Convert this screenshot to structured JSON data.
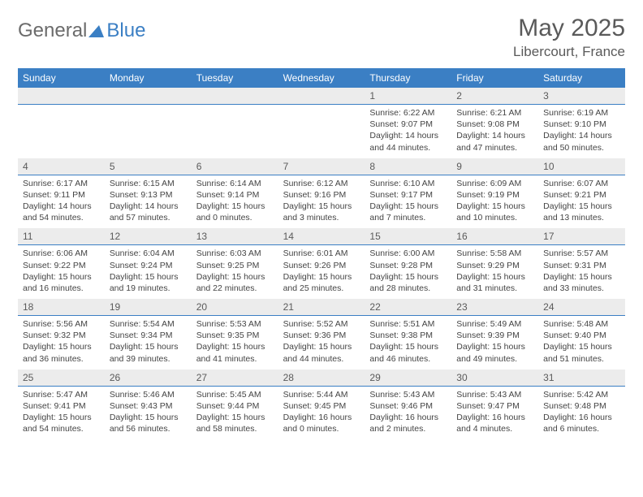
{
  "logo": {
    "text1": "General",
    "text2": "Blue"
  },
  "title": "May 2025",
  "subtitle": "Libercourt, France",
  "colors": {
    "header_bg": "#3b7fc4",
    "header_text": "#ffffff",
    "daynum_bg": "#ececec",
    "border": "#3b7fc4",
    "text": "#444444",
    "title_color": "#5a5a5a"
  },
  "day_names": [
    "Sunday",
    "Monday",
    "Tuesday",
    "Wednesday",
    "Thursday",
    "Friday",
    "Saturday"
  ],
  "weeks": [
    [
      {
        "n": "",
        "sunrise": "",
        "sunset": "",
        "daylight1": "",
        "daylight2": ""
      },
      {
        "n": "",
        "sunrise": "",
        "sunset": "",
        "daylight1": "",
        "daylight2": ""
      },
      {
        "n": "",
        "sunrise": "",
        "sunset": "",
        "daylight1": "",
        "daylight2": ""
      },
      {
        "n": "",
        "sunrise": "",
        "sunset": "",
        "daylight1": "",
        "daylight2": ""
      },
      {
        "n": "1",
        "sunrise": "Sunrise: 6:22 AM",
        "sunset": "Sunset: 9:07 PM",
        "daylight1": "Daylight: 14 hours",
        "daylight2": "and 44 minutes."
      },
      {
        "n": "2",
        "sunrise": "Sunrise: 6:21 AM",
        "sunset": "Sunset: 9:08 PM",
        "daylight1": "Daylight: 14 hours",
        "daylight2": "and 47 minutes."
      },
      {
        "n": "3",
        "sunrise": "Sunrise: 6:19 AM",
        "sunset": "Sunset: 9:10 PM",
        "daylight1": "Daylight: 14 hours",
        "daylight2": "and 50 minutes."
      }
    ],
    [
      {
        "n": "4",
        "sunrise": "Sunrise: 6:17 AM",
        "sunset": "Sunset: 9:11 PM",
        "daylight1": "Daylight: 14 hours",
        "daylight2": "and 54 minutes."
      },
      {
        "n": "5",
        "sunrise": "Sunrise: 6:15 AM",
        "sunset": "Sunset: 9:13 PM",
        "daylight1": "Daylight: 14 hours",
        "daylight2": "and 57 minutes."
      },
      {
        "n": "6",
        "sunrise": "Sunrise: 6:14 AM",
        "sunset": "Sunset: 9:14 PM",
        "daylight1": "Daylight: 15 hours",
        "daylight2": "and 0 minutes."
      },
      {
        "n": "7",
        "sunrise": "Sunrise: 6:12 AM",
        "sunset": "Sunset: 9:16 PM",
        "daylight1": "Daylight: 15 hours",
        "daylight2": "and 3 minutes."
      },
      {
        "n": "8",
        "sunrise": "Sunrise: 6:10 AM",
        "sunset": "Sunset: 9:17 PM",
        "daylight1": "Daylight: 15 hours",
        "daylight2": "and 7 minutes."
      },
      {
        "n": "9",
        "sunrise": "Sunrise: 6:09 AM",
        "sunset": "Sunset: 9:19 PM",
        "daylight1": "Daylight: 15 hours",
        "daylight2": "and 10 minutes."
      },
      {
        "n": "10",
        "sunrise": "Sunrise: 6:07 AM",
        "sunset": "Sunset: 9:21 PM",
        "daylight1": "Daylight: 15 hours",
        "daylight2": "and 13 minutes."
      }
    ],
    [
      {
        "n": "11",
        "sunrise": "Sunrise: 6:06 AM",
        "sunset": "Sunset: 9:22 PM",
        "daylight1": "Daylight: 15 hours",
        "daylight2": "and 16 minutes."
      },
      {
        "n": "12",
        "sunrise": "Sunrise: 6:04 AM",
        "sunset": "Sunset: 9:24 PM",
        "daylight1": "Daylight: 15 hours",
        "daylight2": "and 19 minutes."
      },
      {
        "n": "13",
        "sunrise": "Sunrise: 6:03 AM",
        "sunset": "Sunset: 9:25 PM",
        "daylight1": "Daylight: 15 hours",
        "daylight2": "and 22 minutes."
      },
      {
        "n": "14",
        "sunrise": "Sunrise: 6:01 AM",
        "sunset": "Sunset: 9:26 PM",
        "daylight1": "Daylight: 15 hours",
        "daylight2": "and 25 minutes."
      },
      {
        "n": "15",
        "sunrise": "Sunrise: 6:00 AM",
        "sunset": "Sunset: 9:28 PM",
        "daylight1": "Daylight: 15 hours",
        "daylight2": "and 28 minutes."
      },
      {
        "n": "16",
        "sunrise": "Sunrise: 5:58 AM",
        "sunset": "Sunset: 9:29 PM",
        "daylight1": "Daylight: 15 hours",
        "daylight2": "and 31 minutes."
      },
      {
        "n": "17",
        "sunrise": "Sunrise: 5:57 AM",
        "sunset": "Sunset: 9:31 PM",
        "daylight1": "Daylight: 15 hours",
        "daylight2": "and 33 minutes."
      }
    ],
    [
      {
        "n": "18",
        "sunrise": "Sunrise: 5:56 AM",
        "sunset": "Sunset: 9:32 PM",
        "daylight1": "Daylight: 15 hours",
        "daylight2": "and 36 minutes."
      },
      {
        "n": "19",
        "sunrise": "Sunrise: 5:54 AM",
        "sunset": "Sunset: 9:34 PM",
        "daylight1": "Daylight: 15 hours",
        "daylight2": "and 39 minutes."
      },
      {
        "n": "20",
        "sunrise": "Sunrise: 5:53 AM",
        "sunset": "Sunset: 9:35 PM",
        "daylight1": "Daylight: 15 hours",
        "daylight2": "and 41 minutes."
      },
      {
        "n": "21",
        "sunrise": "Sunrise: 5:52 AM",
        "sunset": "Sunset: 9:36 PM",
        "daylight1": "Daylight: 15 hours",
        "daylight2": "and 44 minutes."
      },
      {
        "n": "22",
        "sunrise": "Sunrise: 5:51 AM",
        "sunset": "Sunset: 9:38 PM",
        "daylight1": "Daylight: 15 hours",
        "daylight2": "and 46 minutes."
      },
      {
        "n": "23",
        "sunrise": "Sunrise: 5:49 AM",
        "sunset": "Sunset: 9:39 PM",
        "daylight1": "Daylight: 15 hours",
        "daylight2": "and 49 minutes."
      },
      {
        "n": "24",
        "sunrise": "Sunrise: 5:48 AM",
        "sunset": "Sunset: 9:40 PM",
        "daylight1": "Daylight: 15 hours",
        "daylight2": "and 51 minutes."
      }
    ],
    [
      {
        "n": "25",
        "sunrise": "Sunrise: 5:47 AM",
        "sunset": "Sunset: 9:41 PM",
        "daylight1": "Daylight: 15 hours",
        "daylight2": "and 54 minutes."
      },
      {
        "n": "26",
        "sunrise": "Sunrise: 5:46 AM",
        "sunset": "Sunset: 9:43 PM",
        "daylight1": "Daylight: 15 hours",
        "daylight2": "and 56 minutes."
      },
      {
        "n": "27",
        "sunrise": "Sunrise: 5:45 AM",
        "sunset": "Sunset: 9:44 PM",
        "daylight1": "Daylight: 15 hours",
        "daylight2": "and 58 minutes."
      },
      {
        "n": "28",
        "sunrise": "Sunrise: 5:44 AM",
        "sunset": "Sunset: 9:45 PM",
        "daylight1": "Daylight: 16 hours",
        "daylight2": "and 0 minutes."
      },
      {
        "n": "29",
        "sunrise": "Sunrise: 5:43 AM",
        "sunset": "Sunset: 9:46 PM",
        "daylight1": "Daylight: 16 hours",
        "daylight2": "and 2 minutes."
      },
      {
        "n": "30",
        "sunrise": "Sunrise: 5:43 AM",
        "sunset": "Sunset: 9:47 PM",
        "daylight1": "Daylight: 16 hours",
        "daylight2": "and 4 minutes."
      },
      {
        "n": "31",
        "sunrise": "Sunrise: 5:42 AM",
        "sunset": "Sunset: 9:48 PM",
        "daylight1": "Daylight: 16 hours",
        "daylight2": "and 6 minutes."
      }
    ]
  ]
}
